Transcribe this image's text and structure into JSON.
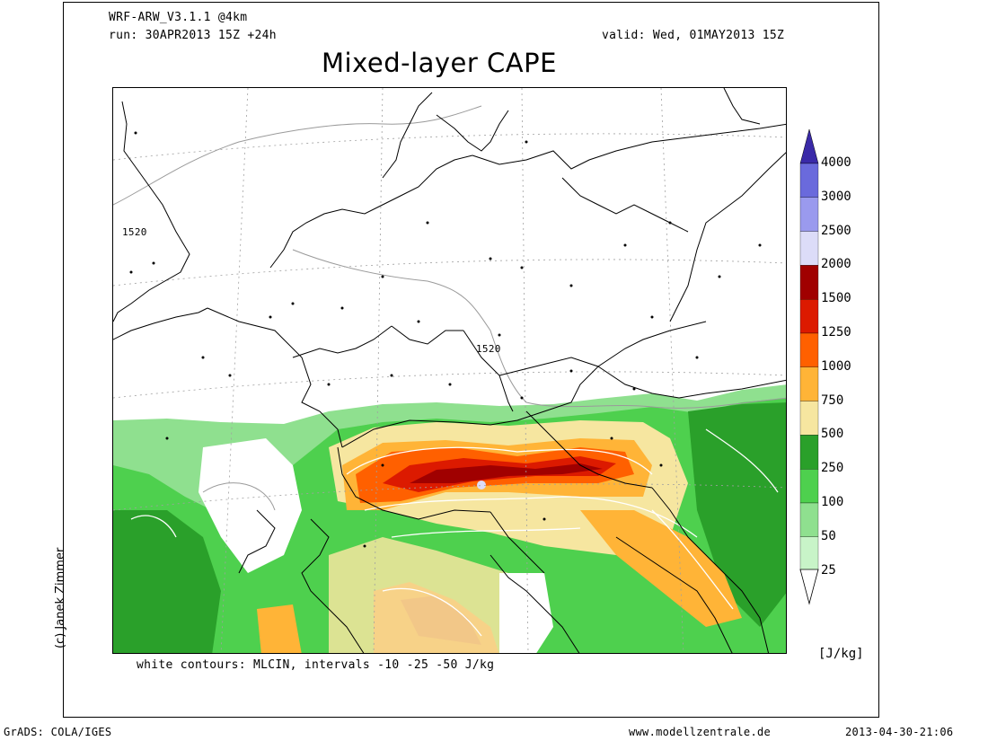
{
  "header": {
    "model": "WRF-ARW_V3.1.1 @4km",
    "run": "run: 30APR2013 15Z +24h",
    "valid": "valid: Wed, 01MAY2013 15Z",
    "title": "Mixed-layer CAPE"
  },
  "map": {
    "contour_label_1": "1520",
    "contour_label_2": "1520",
    "overlay_note": "white contours: MLCIN, intervals -10 -25 -50 J/kg"
  },
  "colorbar": {
    "unit": "[J/kg]",
    "levels": [
      {
        "label": "4000",
        "color": "#6a6adc"
      },
      {
        "label": "3000",
        "color": "#9a9aee"
      },
      {
        "label": "2500",
        "color": "#dcdcf8"
      },
      {
        "label": "2000",
        "color": "#a00000"
      },
      {
        "label": "1500",
        "color": "#dc1a00"
      },
      {
        "label": "1250",
        "color": "#ff6000"
      },
      {
        "label": "1000",
        "color": "#ffb437"
      },
      {
        "label": "750",
        "color": "#f6e6a0"
      },
      {
        "label": "500",
        "color": "#2aa02a"
      },
      {
        "label": "250",
        "color": "#4ed04e"
      },
      {
        "label": "100",
        "color": "#8fe08f"
      },
      {
        "label": "50",
        "color": "#c8f4c8"
      },
      {
        "label": "25",
        "color": "#ffffff"
      }
    ],
    "top_arrow_color": "#3a2aa8"
  },
  "credit": "(c) Janek Zimmer",
  "footer": {
    "left": "GrADS: COLA/IGES",
    "center": "www.modellzentrale.de",
    "right": "2013-04-30-21:06"
  }
}
